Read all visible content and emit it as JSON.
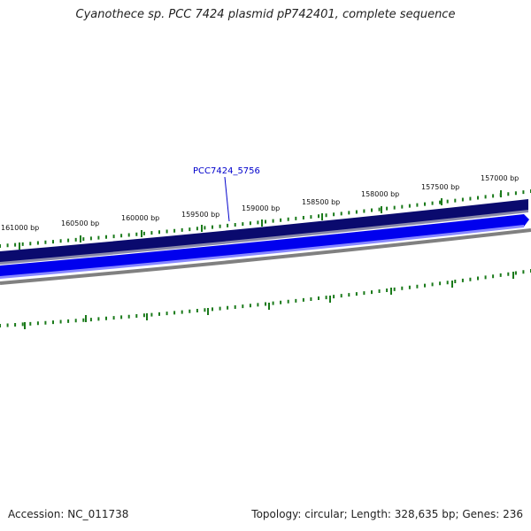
{
  "title": "Cyanothece sp. PCC 7424 plasmid pP742401, complete sequence",
  "footer": {
    "accession": "Accession: NC_011738",
    "summary": "Topology: circular; Length: 328,635 bp; Genes: 236"
  },
  "scale": {
    "labels": [
      "161000 bp",
      "160500 bp",
      "160000 bp",
      "159500 bp",
      "159000 bp",
      "158500 bp",
      "158000 bp",
      "157500 bp",
      "157000 bp"
    ]
  },
  "features": [
    {
      "label": "PCC7424_5756",
      "color": "#0000cc"
    }
  ],
  "colors": {
    "tick": "#1a7a1a",
    "forward_band": "#0a0a6e",
    "reverse_band": "#0000ee",
    "backbone": "#808080",
    "label": "#0000cc"
  }
}
